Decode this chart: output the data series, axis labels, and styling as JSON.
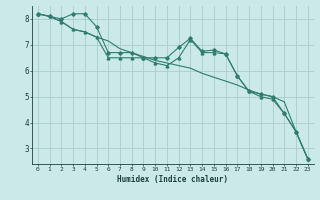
{
  "xlabel": "Humidex (Indice chaleur)",
  "bg_color": "#cce9e9",
  "grid_color": "#aacccc",
  "line_color": "#2e7d6e",
  "xlim": [
    -0.5,
    23.5
  ],
  "ylim": [
    2.4,
    8.5
  ],
  "xticks": [
    0,
    1,
    2,
    3,
    4,
    5,
    6,
    7,
    8,
    9,
    10,
    11,
    12,
    13,
    14,
    15,
    16,
    17,
    18,
    19,
    20,
    21,
    22,
    23
  ],
  "yticks": [
    3,
    4,
    5,
    6,
    7,
    8
  ],
  "line1_x": [
    0,
    1,
    2,
    3,
    4,
    5,
    6,
    7,
    8,
    9,
    10,
    11,
    12,
    13,
    14,
    15,
    16,
    17,
    18,
    19,
    20,
    21,
    22,
    23
  ],
  "line1_y": [
    8.2,
    8.1,
    8.0,
    8.2,
    8.2,
    7.7,
    6.7,
    6.7,
    6.7,
    6.5,
    6.5,
    6.5,
    6.9,
    7.25,
    6.75,
    6.8,
    6.65,
    5.8,
    5.2,
    5.1,
    5.0,
    4.35,
    3.65,
    2.6
  ],
  "line2_x": [
    0,
    1,
    2,
    3,
    4,
    5,
    6,
    7,
    8,
    9,
    10,
    11,
    12,
    13,
    14,
    15,
    16,
    17,
    18,
    19,
    20,
    21,
    22,
    23
  ],
  "line2_y": [
    8.2,
    8.1,
    7.9,
    7.6,
    7.5,
    7.3,
    7.15,
    6.85,
    6.7,
    6.55,
    6.4,
    6.3,
    6.2,
    6.1,
    5.9,
    5.75,
    5.6,
    5.45,
    5.25,
    5.1,
    5.0,
    4.8,
    3.65,
    2.6
  ],
  "line3_x": [
    0,
    1,
    2,
    3,
    4,
    5,
    6,
    7,
    8,
    9,
    10,
    11,
    12,
    13,
    14,
    15,
    16,
    17,
    18,
    19,
    20,
    21,
    22,
    23
  ],
  "line3_y": [
    8.2,
    8.1,
    7.9,
    7.6,
    7.5,
    7.3,
    6.5,
    6.5,
    6.5,
    6.5,
    6.3,
    6.2,
    6.5,
    7.2,
    6.7,
    6.7,
    6.65,
    5.8,
    5.2,
    5.0,
    4.9,
    4.35,
    3.65,
    2.6
  ]
}
